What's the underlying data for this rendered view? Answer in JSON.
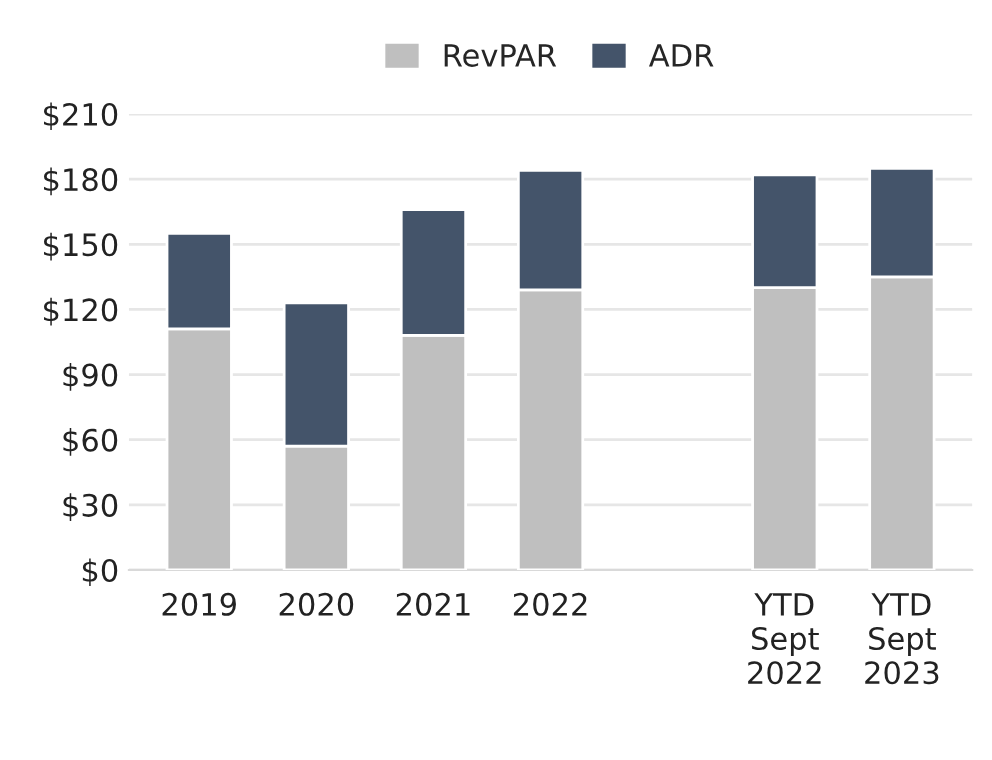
{
  "chart_data": {
    "type": "bar",
    "stacked": true,
    "categories": [
      "2019",
      "2020",
      "2021",
      "2022",
      null,
      "YTD\nSept\n2022",
      "YTD\nSept\n2023"
    ],
    "series": [
      {
        "name": "RevPAR",
        "color": "#bfbfbf",
        "values": [
          111,
          57,
          108,
          129,
          null,
          130,
          135
        ]
      },
      {
        "name": "ADR",
        "color": "#44546a",
        "values": [
          44,
          66,
          58,
          55,
          null,
          52,
          50
        ]
      }
    ],
    "ylim": [
      0,
      210
    ],
    "yticks": [
      {
        "value": 0,
        "label": "$0"
      },
      {
        "value": 30,
        "label": "$30"
      },
      {
        "value": 60,
        "label": "$60"
      },
      {
        "value": 90,
        "label": "$90"
      },
      {
        "value": 120,
        "label": "$120"
      },
      {
        "value": 150,
        "label": "$150"
      },
      {
        "value": 180,
        "label": "$180"
      },
      {
        "value": 210,
        "label": "$210"
      }
    ],
    "grid": "y",
    "legend": "top"
  }
}
